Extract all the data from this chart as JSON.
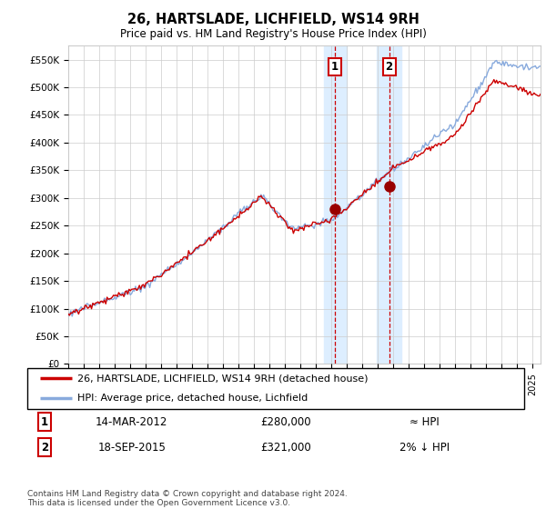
{
  "title": "26, HARTSLADE, LICHFIELD, WS14 9RH",
  "subtitle": "Price paid vs. HM Land Registry's House Price Index (HPI)",
  "ylabel_ticks": [
    "£0",
    "£50K",
    "£100K",
    "£150K",
    "£200K",
    "£250K",
    "£300K",
    "£350K",
    "£400K",
    "£450K",
    "£500K",
    "£550K"
  ],
  "ylim": [
    0,
    575000
  ],
  "xlim_start": 1995.0,
  "xlim_end": 2025.5,
  "sale1_date": 2012.2,
  "sale1_price": 280000,
  "sale2_date": 2015.72,
  "sale2_price": 321000,
  "shade_x1_start": 2011.5,
  "shade_x1_end": 2013.0,
  "shade_x2_start": 2014.9,
  "shade_x2_end": 2016.5,
  "legend_label1": "26, HARTSLADE, LICHFIELD, WS14 9RH (detached house)",
  "legend_label2": "HPI: Average price, detached house, Lichfield",
  "table_row1_num": "1",
  "table_row1_date": "14-MAR-2012",
  "table_row1_price": "£280,000",
  "table_row1_hpi": "≈ HPI",
  "table_row2_num": "2",
  "table_row2_date": "18-SEP-2015",
  "table_row2_price": "£321,000",
  "table_row2_hpi": "2% ↓ HPI",
  "footer": "Contains HM Land Registry data © Crown copyright and database right 2024.\nThis data is licensed under the Open Government Licence v3.0.",
  "line_color_price": "#cc0000",
  "line_color_hpi": "#88aadd",
  "shade_color": "#ddeeff",
  "grid_color": "#cccccc",
  "box_color": "#cc0000"
}
